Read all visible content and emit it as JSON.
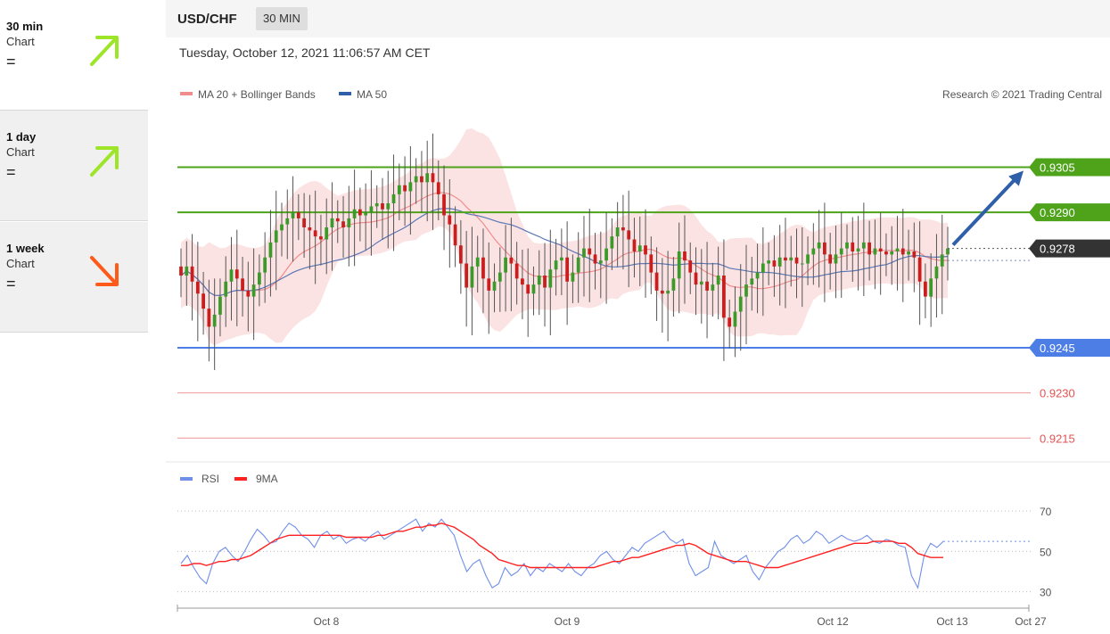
{
  "sidebar": {
    "items": [
      {
        "name": "30 min",
        "sub": "Chart",
        "eq": "=",
        "direction": "up",
        "color": "#9ee52a"
      },
      {
        "name": "1 day",
        "sub": "Chart",
        "eq": "=",
        "direction": "up",
        "color": "#9ee52a"
      },
      {
        "name": "1 week",
        "sub": "Chart",
        "eq": "=",
        "direction": "down",
        "color": "#ff5a1a"
      }
    ]
  },
  "header": {
    "symbol": "USD/CHF",
    "interval": "30 MIN",
    "timestamp": "Tuesday, October 12, 2021 11:06:57 AM CET"
  },
  "legend": {
    "ma20": "MA 20 + Bollinger Bands",
    "ma50": "MA 50",
    "credit": "Research © 2021 Trading Central"
  },
  "rsi_legend": {
    "rsi": "RSI",
    "ma9": "9MA"
  },
  "chart_data": [
    {
      "type": "candlestick",
      "title": "USD/CHF",
      "ylim": [
        0.9205,
        0.9325
      ],
      "current_price": "0.9278",
      "levels": [
        {
          "label": "0.9305",
          "value": 0.9305,
          "kind": "resistance",
          "color": "#4ea31b"
        },
        {
          "label": "0.9290",
          "value": 0.929,
          "kind": "resistance",
          "color": "#4ea31b"
        },
        {
          "label": "0.9245",
          "value": 0.9245,
          "kind": "pivot",
          "color": "#4d7ee6"
        },
        {
          "label": "0.9230",
          "value": 0.923,
          "kind": "support",
          "color": "#e65252"
        },
        {
          "label": "0.9215",
          "value": 0.9215,
          "kind": "support",
          "color": "#e65252"
        }
      ],
      "x_ticks": [
        "Oct 8",
        "Oct 9",
        "Oct 12",
        "Oct 13",
        "Oct 27"
      ],
      "close": [
        0.9269,
        0.9272,
        0.9267,
        0.9263,
        0.9258,
        0.9252,
        0.9256,
        0.9262,
        0.9267,
        0.9271,
        0.9268,
        0.9264,
        0.9262,
        0.9266,
        0.927,
        0.9275,
        0.928,
        0.9284,
        0.9286,
        0.9288,
        0.929,
        0.9288,
        0.9285,
        0.9284,
        0.9282,
        0.9281,
        0.9285,
        0.9288,
        0.9287,
        0.9285,
        0.9288,
        0.9291,
        0.9289,
        0.929,
        0.9292,
        0.9293,
        0.9291,
        0.9293,
        0.9296,
        0.9299,
        0.9297,
        0.93,
        0.9302,
        0.93,
        0.9303,
        0.93,
        0.9296,
        0.9289,
        0.9286,
        0.9279,
        0.9273,
        0.9265,
        0.9272,
        0.9275,
        0.9268,
        0.9264,
        0.9267,
        0.927,
        0.9275,
        0.9273,
        0.9268,
        0.9266,
        0.9263,
        0.9266,
        0.9269,
        0.9265,
        0.9271,
        0.9274,
        0.9275,
        0.9267,
        0.927,
        0.9275,
        0.9278,
        0.9276,
        0.9273,
        0.9274,
        0.9278,
        0.9282,
        0.9285,
        0.9284,
        0.9281,
        0.9277,
        0.9279,
        0.9276,
        0.927,
        0.9264,
        0.9263,
        0.9264,
        0.9268,
        0.9277,
        0.9274,
        0.927,
        0.9266,
        0.9267,
        0.9264,
        0.9266,
        0.9269,
        0.9255,
        0.9252,
        0.9257,
        0.9262,
        0.9266,
        0.9268,
        0.927,
        0.9273,
        0.9274,
        0.9272,
        0.9275,
        0.9274,
        0.9275,
        0.9273,
        0.9273,
        0.9276,
        0.9278,
        0.928,
        0.9276,
        0.9273,
        0.9276,
        0.9278,
        0.928,
        0.9277,
        0.9278,
        0.928,
        0.9276,
        0.9278,
        0.9277,
        0.9276,
        0.9277,
        0.9278,
        0.9276,
        0.9277,
        0.9275,
        0.9267,
        0.9262,
        0.9268,
        0.9272,
        0.9276,
        0.9278
      ]
    },
    {
      "type": "line",
      "title": "RSI",
      "ylim": [
        25,
        78
      ],
      "y_ticks": [
        "70",
        "50",
        "30"
      ],
      "series": [
        {
          "name": "RSI",
          "color": "#6f8fe8",
          "values": [
            44,
            48,
            42,
            37,
            34,
            44,
            50,
            52,
            48,
            45,
            50,
            56,
            61,
            58,
            54,
            55,
            60,
            64,
            62,
            58,
            56,
            52,
            58,
            60,
            56,
            58,
            54,
            56,
            57,
            55,
            58,
            60,
            56,
            58,
            60,
            62,
            64,
            66,
            60,
            64,
            62,
            66,
            62,
            58,
            48,
            40,
            44,
            46,
            38,
            32,
            34,
            42,
            38,
            40,
            44,
            38,
            42,
            40,
            44,
            42,
            40,
            44,
            40,
            38,
            42,
            44,
            48,
            50,
            46,
            44,
            48,
            52,
            50,
            54,
            56,
            58,
            60,
            56,
            54,
            56,
            44,
            38,
            40,
            42,
            55,
            48,
            46,
            44,
            46,
            48,
            40,
            36,
            42,
            46,
            50,
            52,
            56,
            58,
            54,
            56,
            60,
            58,
            54,
            56,
            58,
            56,
            55,
            56,
            58,
            55,
            54,
            56,
            55,
            53,
            52,
            38,
            32,
            48,
            54,
            52,
            55
          ]
        },
        {
          "name": "9MA",
          "color": "#ff2020",
          "values": [
            43,
            43,
            44,
            44,
            43,
            44,
            45,
            45,
            46,
            46,
            47,
            48,
            50,
            52,
            54,
            56,
            57,
            58,
            58,
            58,
            58,
            58,
            58,
            58,
            58,
            58,
            57,
            57,
            57,
            57,
            57,
            58,
            58,
            59,
            60,
            60,
            61,
            62,
            62,
            63,
            63,
            64,
            63,
            62,
            60,
            58,
            56,
            53,
            51,
            49,
            46,
            45,
            44,
            43,
            43,
            42,
            42,
            42,
            42,
            42,
            42,
            42,
            42,
            42,
            42,
            42,
            43,
            44,
            45,
            45,
            46,
            47,
            47,
            48,
            49,
            50,
            51,
            52,
            53,
            53,
            54,
            53,
            51,
            49,
            48,
            47,
            46,
            45,
            45,
            45,
            44,
            43,
            42,
            42,
            42,
            43,
            44,
            45,
            46,
            47,
            48,
            49,
            50,
            51,
            52,
            53,
            54,
            54,
            54,
            55,
            55,
            55,
            55,
            54,
            54,
            52,
            49,
            48,
            47,
            47,
            47
          ]
        }
      ]
    }
  ]
}
